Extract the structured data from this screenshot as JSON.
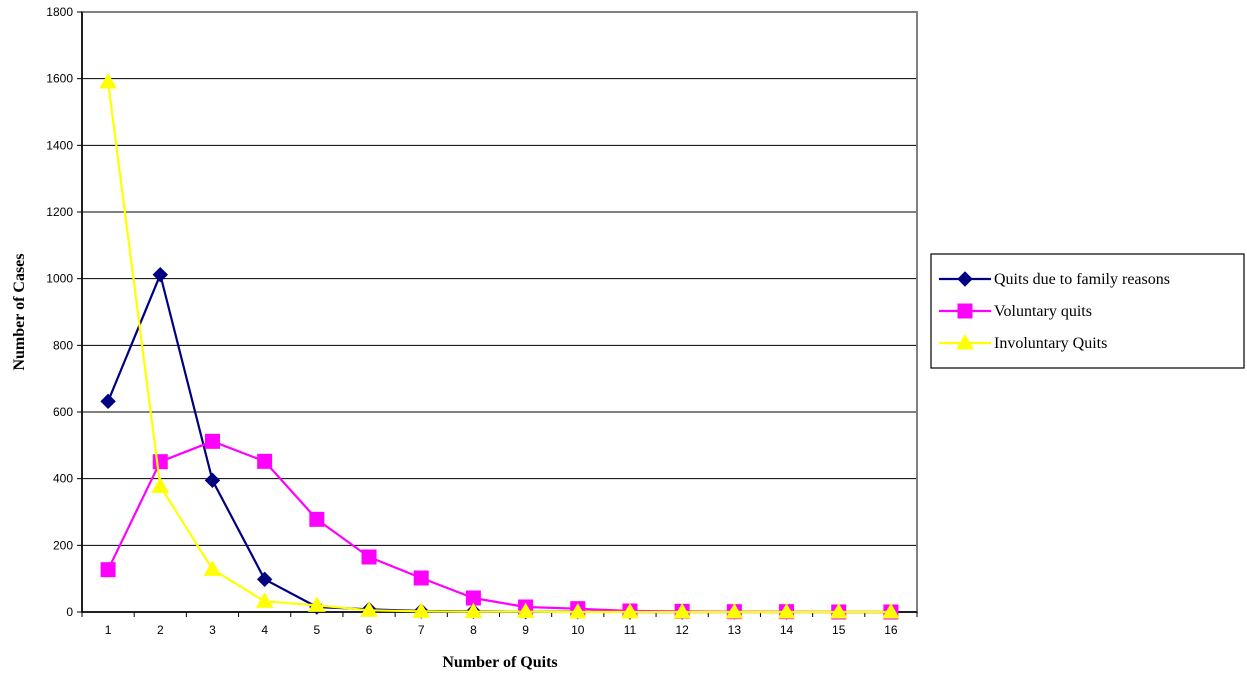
{
  "chart_data": {
    "type": "line",
    "title": "",
    "xlabel": "Number of Quits",
    "ylabel": "Number of Cases",
    "x": [
      1,
      2,
      3,
      4,
      5,
      6,
      7,
      8,
      9,
      10,
      11,
      12,
      13,
      14,
      15,
      16
    ],
    "x_tick_labels": [
      "1",
      "2",
      "3",
      "4",
      "5",
      "6",
      "7",
      "8",
      "9",
      "10",
      "11",
      "12",
      "13",
      "14",
      "15",
      "16"
    ],
    "y_tick_labels": [
      "0",
      "200",
      "400",
      "600",
      "800",
      "1000",
      "1200",
      "1400",
      "1600",
      "1800"
    ],
    "ylim": [
      0,
      1800
    ],
    "grid": "horizontal",
    "legend_position": "right",
    "series": [
      {
        "name": "Quits due to family reasons",
        "color": "#000080",
        "marker": "diamond",
        "values": [
          632,
          1012,
          395,
          98,
          15,
          8,
          3,
          2,
          1,
          1,
          0,
          0,
          0,
          0,
          0,
          0
        ]
      },
      {
        "name": "Voluntary quits",
        "color": "#FF00FF",
        "marker": "square",
        "values": [
          127,
          451,
          512,
          452,
          278,
          165,
          102,
          42,
          15,
          10,
          3,
          2,
          1,
          1,
          0,
          0
        ]
      },
      {
        "name": "Involuntary Quits",
        "color": "#FFFF00",
        "marker": "triangle",
        "values": [
          1590,
          377,
          128,
          32,
          20,
          5,
          2,
          1,
          1,
          0,
          0,
          0,
          0,
          0,
          0,
          0
        ]
      }
    ]
  }
}
